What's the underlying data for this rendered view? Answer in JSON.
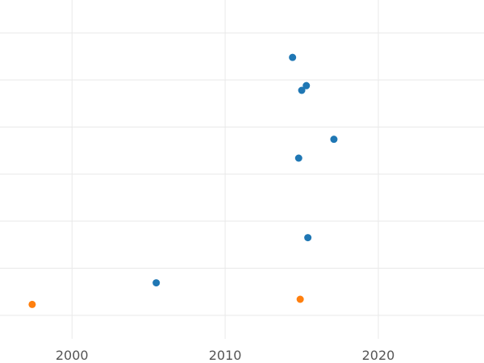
{
  "chart_data": {
    "type": "scatter",
    "title": "",
    "xlabel": "",
    "ylabel": "",
    "xlim": [
      1995.3,
      2026.9
    ],
    "ylim": [
      0,
      7.2
    ],
    "x_ticks": [
      2000,
      2010,
      2020
    ],
    "x_tick_labels": [
      "2000",
      "2010",
      "2020"
    ],
    "y_gridlines": [
      0.5,
      1.5,
      2.5,
      3.5,
      4.5,
      5.5,
      6.5
    ],
    "y_tick_labels_shown": false,
    "grid": true,
    "legend": "none",
    "series": [
      {
        "color": "#1f77b4",
        "points": [
          {
            "x": 2014.4,
            "y": 5.98
          },
          {
            "x": 2015.3,
            "y": 5.38
          },
          {
            "x": 2015.0,
            "y": 5.28
          },
          {
            "x": 2017.1,
            "y": 4.24
          },
          {
            "x": 2014.8,
            "y": 3.84
          },
          {
            "x": 2015.4,
            "y": 2.15
          },
          {
            "x": 2005.5,
            "y": 1.19
          }
        ]
      },
      {
        "color": "#ff7f0e",
        "points": [
          {
            "x": 1997.4,
            "y": 0.73
          },
          {
            "x": 2014.9,
            "y": 0.84
          }
        ]
      }
    ]
  }
}
